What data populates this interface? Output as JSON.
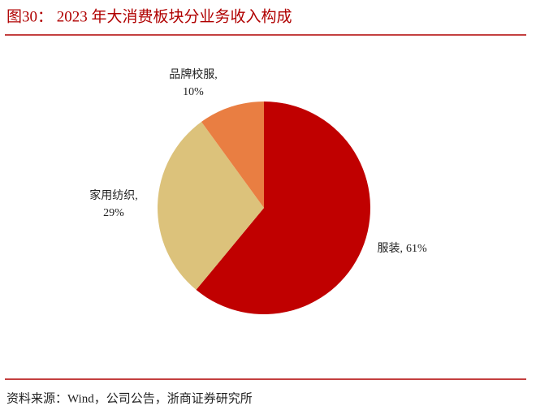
{
  "chart_data": {
    "type": "pie",
    "title": "图30： 2023 年大消费板块分业务收入构成",
    "categories": [
      "服装,",
      "家用纺织,",
      "品牌校服,"
    ],
    "values": [
      61,
      29,
      10
    ],
    "value_labels": [
      "61%",
      "29%",
      "10%"
    ],
    "colors": [
      "#c00000",
      "#dcc27b",
      "#e97e42"
    ],
    "source": "资料来源：Wind，公司公告，浙商证券研究所"
  }
}
